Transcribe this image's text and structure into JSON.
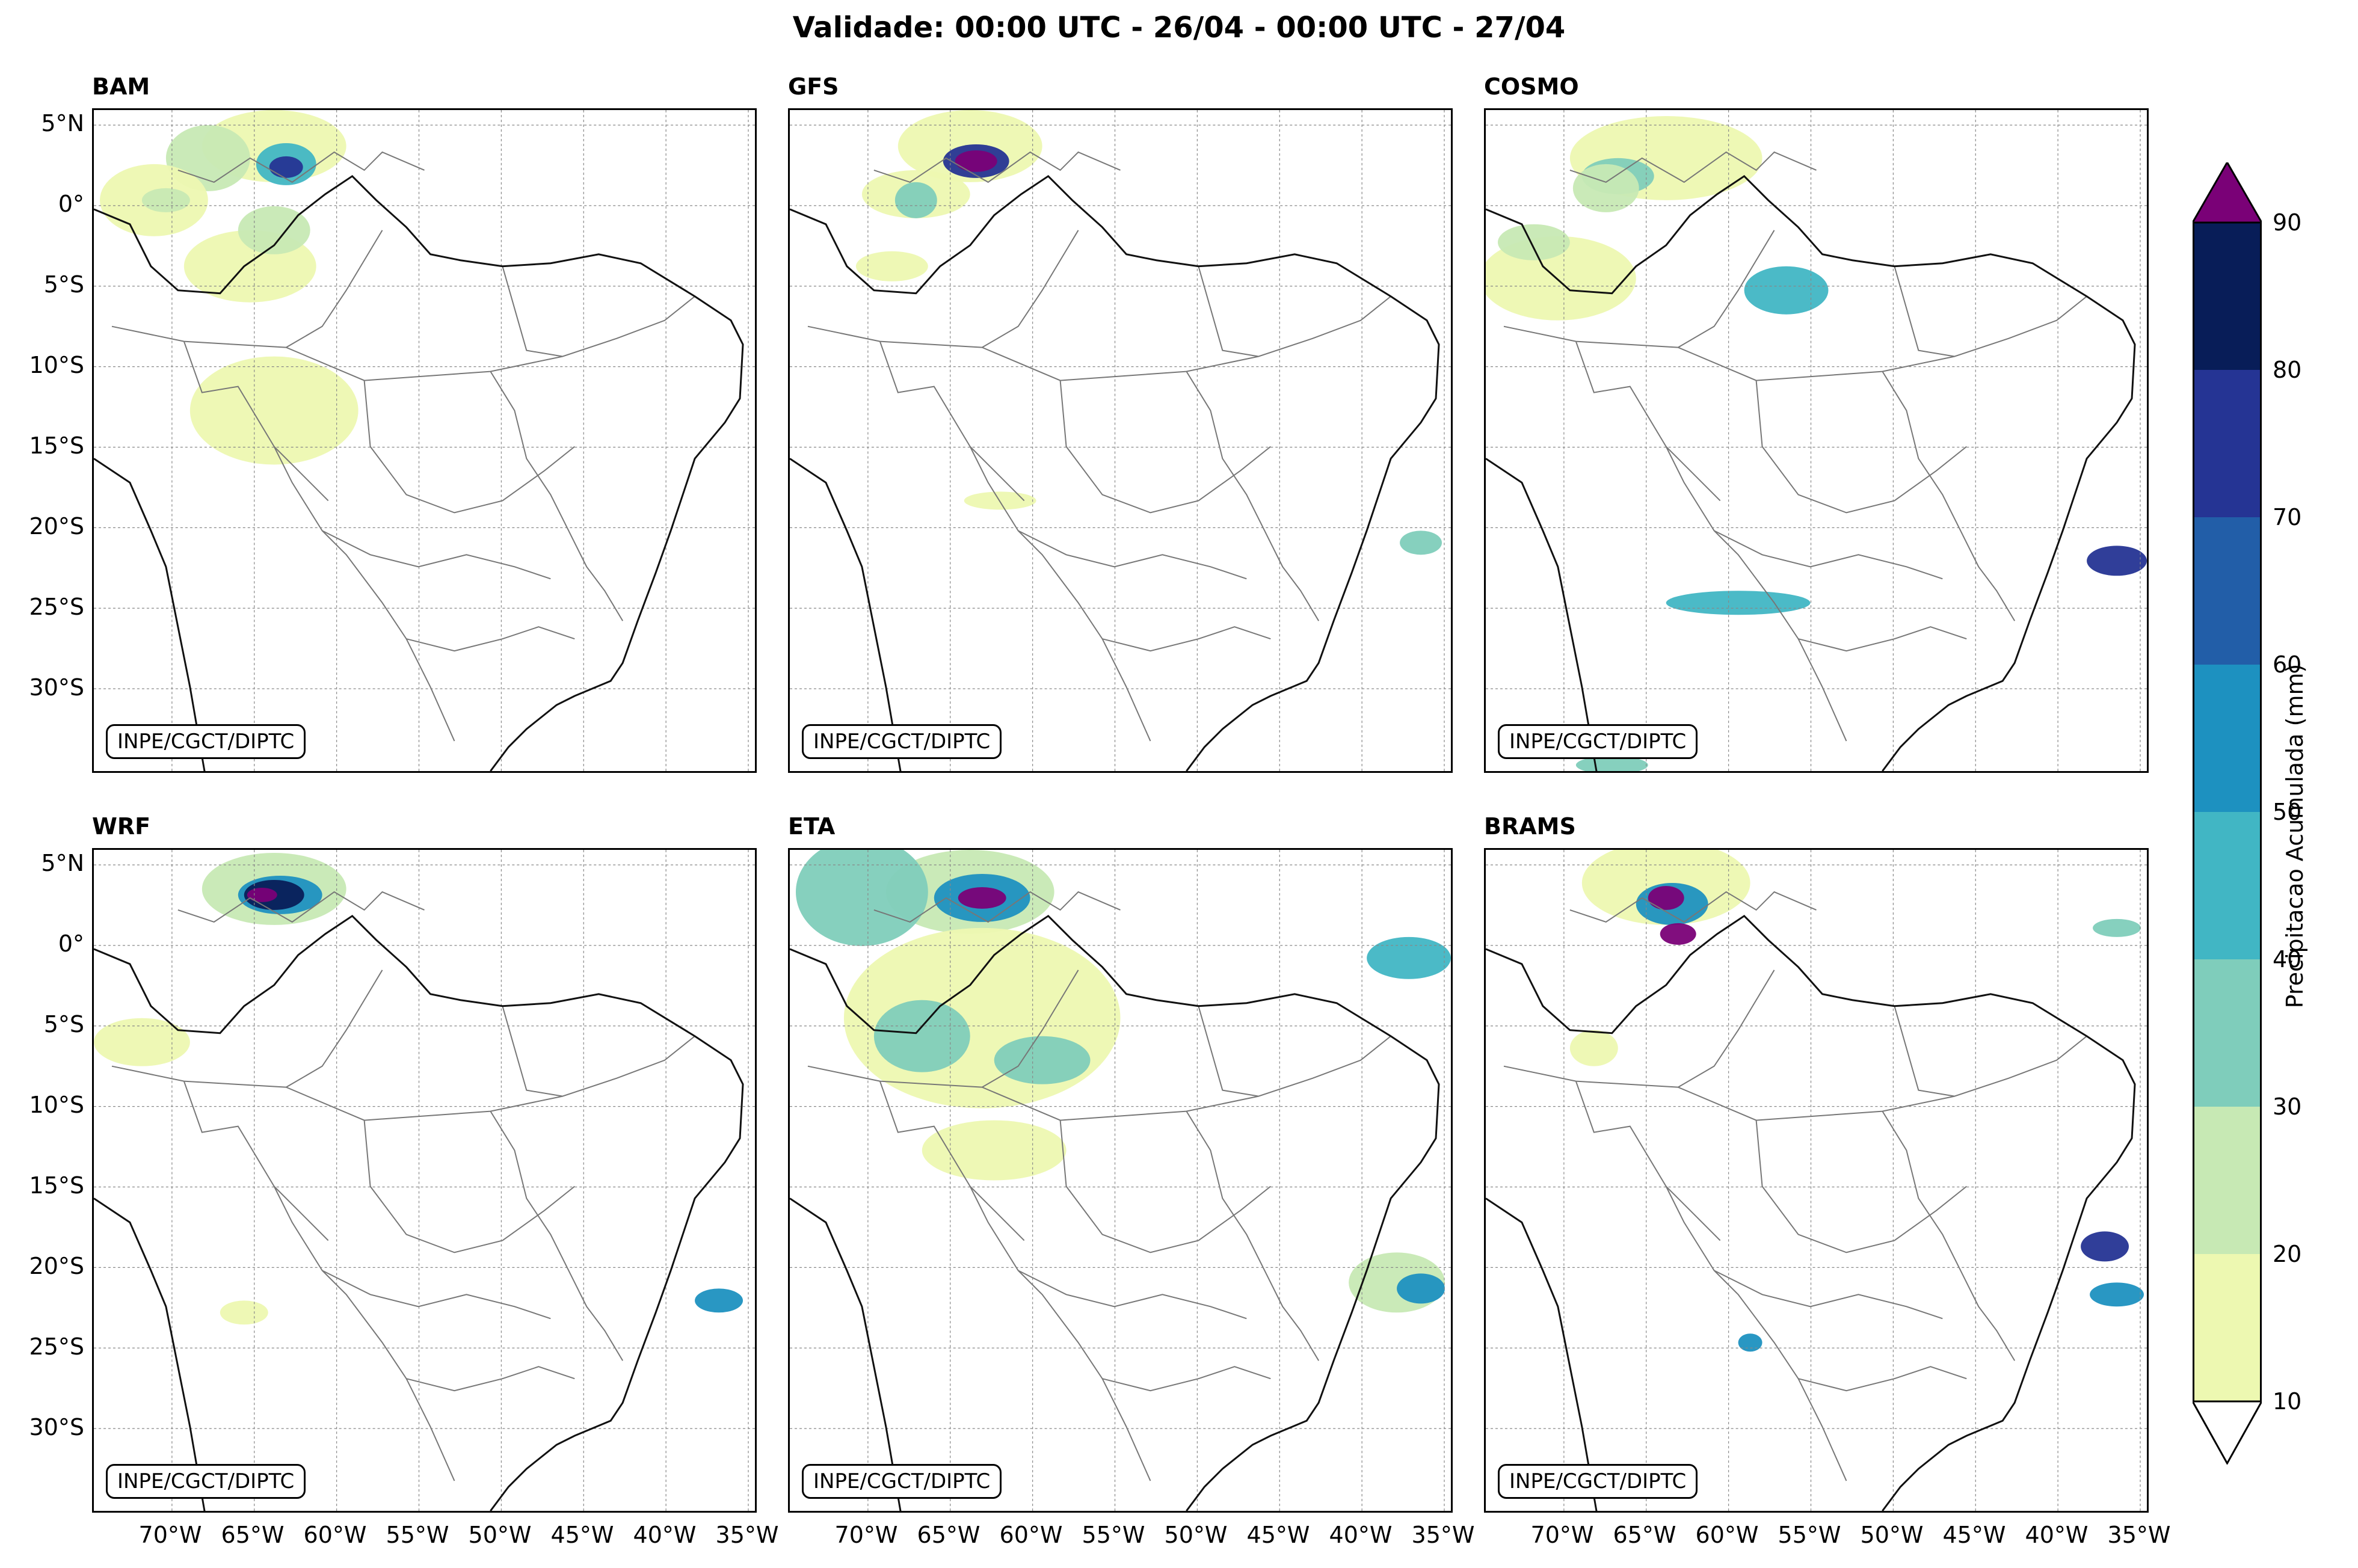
{
  "title": "Validade: 00:00 UTC - 26/04 - 00:00 UTC - 27/04",
  "credit": "INPE/CGCT/DIPTC",
  "panels": [
    {
      "model": "BAM"
    },
    {
      "model": "GFS"
    },
    {
      "model": "COSMO"
    },
    {
      "model": "WRF"
    },
    {
      "model": "ETA"
    },
    {
      "model": "BRAMS"
    }
  ],
  "lat_labels": [
    "5°N",
    "0°",
    "5°S",
    "10°S",
    "15°S",
    "20°S",
    "25°S",
    "30°S"
  ],
  "lon_labels": [
    "70°W",
    "65°W",
    "60°W",
    "55°W",
    "50°W",
    "45°W",
    "40°W",
    "35°W"
  ],
  "colorbar": {
    "label": "Precipitacao Acumulada (mm)",
    "ticks": [
      "10",
      "20",
      "30",
      "40",
      "50",
      "60",
      "70",
      "80",
      "90"
    ],
    "colors": [
      "#edf8b1",
      "#c7e9b4",
      "#7fcdbb",
      "#41b6c4",
      "#1d91c0",
      "#225ea8",
      "#253494",
      "#081d58"
    ],
    "over_color": "#7a0177",
    "under_color": "#ffffff"
  }
}
